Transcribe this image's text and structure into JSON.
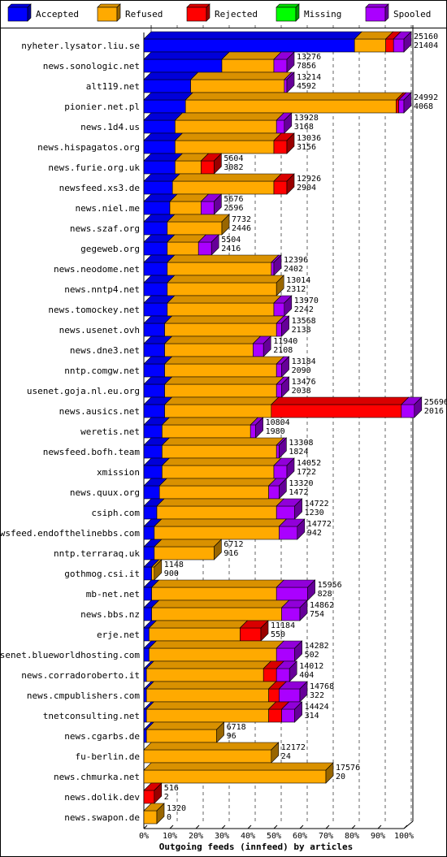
{
  "legend": [
    {
      "name": "Accepted",
      "color": "#0000ff"
    },
    {
      "name": "Refused",
      "color": "#ffaa00"
    },
    {
      "name": "Rejected",
      "color": "#ff0000"
    },
    {
      "name": "Missing",
      "color": "#00ff00"
    },
    {
      "name": "Spooled",
      "color": "#aa00ff"
    }
  ],
  "chart_data": {
    "type": "bar",
    "orientation": "horizontal",
    "stacked": true,
    "normalized": true,
    "title": "",
    "xlabel": "Outgoing feeds (innfeed) by articles",
    "ylabel": "",
    "xlim": [
      0,
      100
    ],
    "x_ticks": [
      "0%",
      "10%",
      "20%",
      "30%",
      "40%",
      "50%",
      "60%",
      "70%",
      "80%",
      "90%",
      "100%"
    ],
    "grid": "vertical dashed",
    "legend_position": "top",
    "series_names": [
      "Accepted",
      "Refused",
      "Rejected",
      "Missing",
      "Spooled"
    ],
    "categories": [
      {
        "name": "nyheter.lysator.liu.se",
        "offered": "25160",
        "accepted": "21404",
        "pct": [
          81,
          12,
          3,
          0,
          4
        ]
      },
      {
        "name": "news.sonologic.net",
        "offered": "13276",
        "accepted": "7856",
        "pct": [
          30,
          20,
          0,
          0,
          5
        ]
      },
      {
        "name": "alt119.net",
        "offered": "13214",
        "accepted": "4592",
        "pct": [
          18,
          36,
          0,
          0,
          1
        ]
      },
      {
        "name": "pionier.net.pl",
        "offered": "24992",
        "accepted": "4068",
        "pct": [
          16,
          81,
          1,
          0,
          2
        ]
      },
      {
        "name": "news.1d4.us",
        "offered": "13928",
        "accepted": "3168",
        "pct": [
          12,
          39,
          0,
          0,
          3
        ]
      },
      {
        "name": "news.hispagatos.org",
        "offered": "13036",
        "accepted": "3156",
        "pct": [
          12,
          38,
          5,
          0,
          0
        ]
      },
      {
        "name": "news.furie.org.uk",
        "offered": "5604",
        "accepted": "3082",
        "pct": [
          12,
          10,
          5,
          0,
          0
        ]
      },
      {
        "name": "newsfeed.xs3.de",
        "offered": "12926",
        "accepted": "2904",
        "pct": [
          11,
          39,
          5,
          0,
          0
        ]
      },
      {
        "name": "news.niel.me",
        "offered": "5676",
        "accepted": "2596",
        "pct": [
          10,
          12,
          0,
          0,
          5
        ]
      },
      {
        "name": "news.szaf.org",
        "offered": "7732",
        "accepted": "2446",
        "pct": [
          9,
          21,
          0,
          0,
          0
        ]
      },
      {
        "name": "gegeweb.org",
        "offered": "5504",
        "accepted": "2416",
        "pct": [
          9,
          12,
          0,
          0,
          5
        ]
      },
      {
        "name": "news.neodome.net",
        "offered": "12396",
        "accepted": "2402",
        "pct": [
          9,
          40,
          0,
          0,
          1
        ]
      },
      {
        "name": "news.nntp4.net",
        "offered": "13014",
        "accepted": "2312",
        "pct": [
          9,
          42,
          0,
          0,
          0
        ]
      },
      {
        "name": "news.tomockey.net",
        "offered": "13970",
        "accepted": "2242",
        "pct": [
          9,
          41,
          0,
          0,
          4
        ]
      },
      {
        "name": "news.usenet.ovh",
        "offered": "13568",
        "accepted": "2138",
        "pct": [
          8,
          43,
          0,
          0,
          2
        ]
      },
      {
        "name": "news.dne3.net",
        "offered": "11940",
        "accepted": "2108",
        "pct": [
          8,
          34,
          0,
          0,
          4
        ]
      },
      {
        "name": "nntp.comgw.net",
        "offered": "13184",
        "accepted": "2090",
        "pct": [
          8,
          43,
          0,
          0,
          2
        ]
      },
      {
        "name": "usenet.goja.nl.eu.org",
        "offered": "13476",
        "accepted": "2038",
        "pct": [
          8,
          43,
          0,
          0,
          2
        ]
      },
      {
        "name": "news.ausics.net",
        "offered": "25696",
        "accepted": "2016",
        "pct": [
          8,
          41,
          50,
          0,
          5
        ]
      },
      {
        "name": "weretis.net",
        "offered": "10804",
        "accepted": "1980",
        "pct": [
          7,
          34,
          0,
          0,
          2
        ]
      },
      {
        "name": "newsfeed.bofh.team",
        "offered": "13308",
        "accepted": "1824",
        "pct": [
          7,
          44,
          0,
          0,
          1
        ]
      },
      {
        "name": "xmission",
        "offered": "14052",
        "accepted": "1722",
        "pct": [
          7,
          43,
          0,
          0,
          5
        ]
      },
      {
        "name": "news.quux.org",
        "offered": "13320",
        "accepted": "1472",
        "pct": [
          6,
          42,
          0,
          0,
          4
        ]
      },
      {
        "name": "csiph.com",
        "offered": "14722",
        "accepted": "1230",
        "pct": [
          5,
          46,
          0,
          0,
          7
        ]
      },
      {
        "name": "newsfeed.endofthelinebbs.com",
        "offered": "14772",
        "accepted": "942",
        "pct": [
          4,
          48,
          0,
          0,
          7
        ]
      },
      {
        "name": "nntp.terraraq.uk",
        "offered": "6712",
        "accepted": "916",
        "pct": [
          4,
          23,
          0,
          0,
          0
        ]
      },
      {
        "name": "gothmog.csi.it",
        "offered": "1148",
        "accepted": "900",
        "pct": [
          3,
          1,
          0,
          0,
          0
        ]
      },
      {
        "name": "mb-net.net",
        "offered": "15956",
        "accepted": "828",
        "pct": [
          3,
          48,
          0,
          0,
          12
        ]
      },
      {
        "name": "news.bbs.nz",
        "offered": "14862",
        "accepted": "754",
        "pct": [
          3,
          50,
          0,
          0,
          7
        ]
      },
      {
        "name": "erje.net",
        "offered": "11184",
        "accepted": "550",
        "pct": [
          2,
          35,
          8,
          0,
          0
        ]
      },
      {
        "name": "usenet.blueworldhosting.com",
        "offered": "14282",
        "accepted": "502",
        "pct": [
          2,
          49,
          0,
          0,
          7
        ]
      },
      {
        "name": "news.corradoroberto.it",
        "offered": "14012",
        "accepted": "404",
        "pct": [
          1,
          45,
          5,
          0,
          5
        ]
      },
      {
        "name": "news.cmpublishers.com",
        "offered": "14768",
        "accepted": "322",
        "pct": [
          1,
          47,
          4,
          0,
          8
        ]
      },
      {
        "name": "tnetconsulting.net",
        "offered": "14424",
        "accepted": "314",
        "pct": [
          1,
          47,
          5,
          0,
          5
        ]
      },
      {
        "name": "news.cgarbs.de",
        "offered": "6718",
        "accepted": "96",
        "pct": [
          1,
          27,
          0,
          0,
          0
        ]
      },
      {
        "name": "fu-berlin.de",
        "offered": "12172",
        "accepted": "24",
        "pct": [
          0,
          49,
          0,
          0,
          0
        ]
      },
      {
        "name": "news.chmurka.net",
        "offered": "17576",
        "accepted": "20",
        "pct": [
          0,
          70,
          0,
          0,
          0
        ]
      },
      {
        "name": "news.dolik.dev",
        "offered": "516",
        "accepted": "2",
        "pct": [
          0,
          0,
          4,
          0,
          0
        ]
      },
      {
        "name": "news.swapon.de",
        "offered": "1320",
        "accepted": "0",
        "pct": [
          0,
          5,
          0,
          0,
          0
        ]
      }
    ]
  }
}
